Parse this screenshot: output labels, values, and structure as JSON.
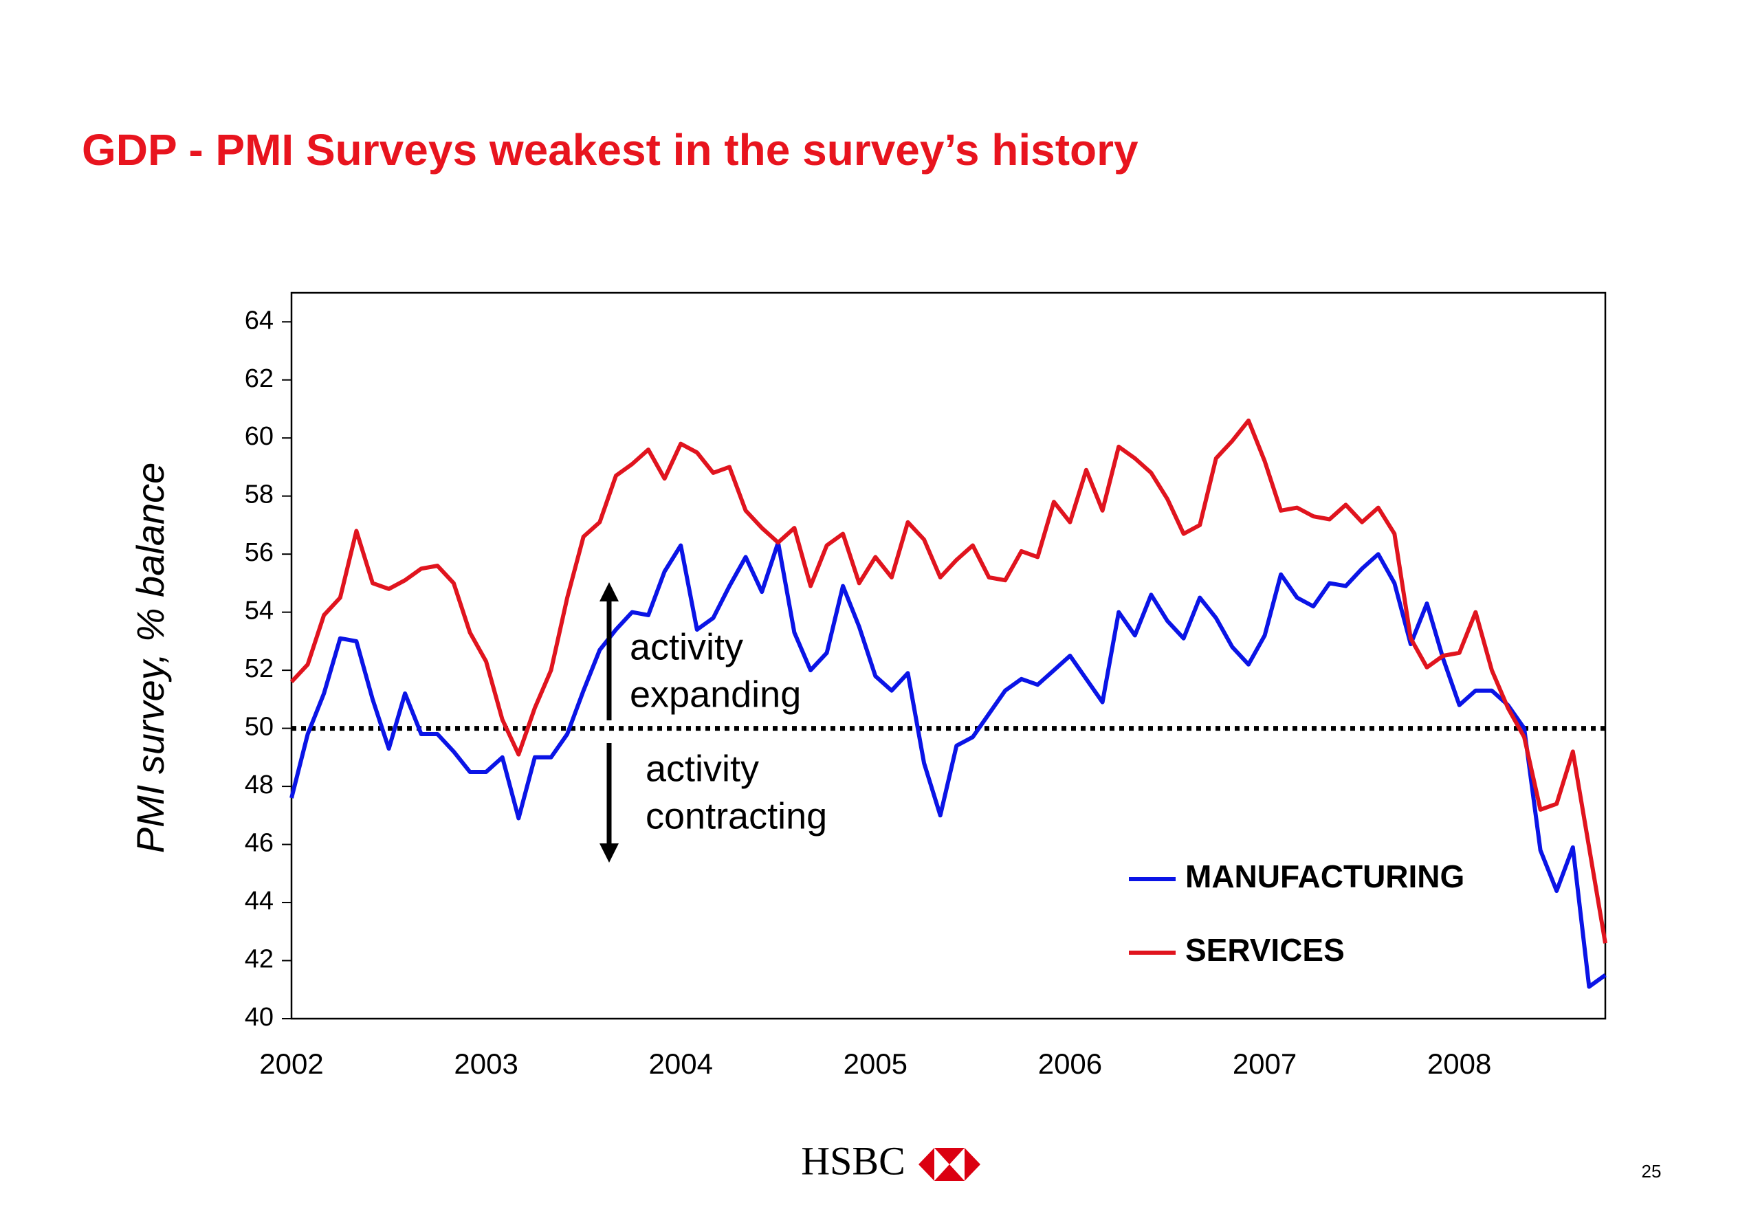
{
  "chart_data": {
    "type": "line",
    "title": "GDP - PMI Surveys weakest in the survey’s history",
    "y_label": "PMI survey, % balance",
    "categories": [
      "2002",
      null,
      null,
      null,
      null,
      null,
      null,
      null,
      null,
      null,
      null,
      null,
      "2003",
      null,
      null,
      null,
      null,
      null,
      null,
      null,
      null,
      null,
      null,
      null,
      "2004",
      null,
      null,
      null,
      null,
      null,
      null,
      null,
      null,
      null,
      null,
      null,
      "2005",
      null,
      null,
      null,
      null,
      null,
      null,
      null,
      null,
      null,
      null,
      null,
      "2006",
      null,
      null,
      null,
      null,
      null,
      null,
      null,
      null,
      null,
      null,
      null,
      "2007",
      null,
      null,
      null,
      null,
      null,
      null,
      null,
      null,
      null,
      null,
      null,
      "2008",
      null,
      null,
      null,
      null,
      null,
      null,
      null,
      null,
      null
    ],
    "series": [
      {
        "name": "MANUFACTURING",
        "color": "#0a14e6",
        "values": [
          47.6,
          49.8,
          51.2,
          53.1,
          53.0,
          51.0,
          49.3,
          51.2,
          49.8,
          49.8,
          49.2,
          48.5,
          48.5,
          49.0,
          46.9,
          49.0,
          49.0,
          49.8,
          51.3,
          52.7,
          53.4,
          54.0,
          53.9,
          55.4,
          56.3,
          53.4,
          53.8,
          54.9,
          55.9,
          54.7,
          56.4,
          53.3,
          52.0,
          52.6,
          54.9,
          53.5,
          51.8,
          51.3,
          51.9,
          48.8,
          47.0,
          49.4,
          49.7,
          50.5,
          51.3,
          51.7,
          51.5,
          52.0,
          52.5,
          51.7,
          50.9,
          54.0,
          53.2,
          54.6,
          53.7,
          53.1,
          54.5,
          53.8,
          52.8,
          52.2,
          53.2,
          55.3,
          54.5,
          54.2,
          55.0,
          54.9,
          55.5,
          56.0,
          55.0,
          52.9,
          54.3,
          52.4,
          50.8,
          51.3,
          51.3,
          50.8,
          50.0,
          45.8,
          44.4,
          45.9,
          41.1,
          41.5
        ]
      },
      {
        "name": "SERVICES",
        "color": "#e0141e",
        "values": [
          51.6,
          52.2,
          53.9,
          54.5,
          56.8,
          55.0,
          54.8,
          55.1,
          55.5,
          55.6,
          55.0,
          53.3,
          52.3,
          50.3,
          49.1,
          50.7,
          52.0,
          54.5,
          56.6,
          57.1,
          58.7,
          59.1,
          59.6,
          58.6,
          59.8,
          59.5,
          58.8,
          59.0,
          57.5,
          56.9,
          56.4,
          56.9,
          54.9,
          56.3,
          56.7,
          55.0,
          55.9,
          55.2,
          57.1,
          56.5,
          55.2,
          55.8,
          56.3,
          55.2,
          55.1,
          56.1,
          55.9,
          57.8,
          57.1,
          58.9,
          57.5,
          59.7,
          59.3,
          58.8,
          57.9,
          56.7,
          57.0,
          59.3,
          59.9,
          60.6,
          59.2,
          57.5,
          57.6,
          57.3,
          57.2,
          57.7,
          57.1,
          57.6,
          56.7,
          53.1,
          52.1,
          52.5,
          52.6,
          54.0,
          52.0,
          50.7,
          49.7,
          47.2,
          47.4,
          49.2,
          45.9,
          42.6
        ]
      }
    ],
    "ylim": [
      40,
      65
    ],
    "yticks": [
      40,
      42,
      44,
      46,
      48,
      50,
      52,
      54,
      56,
      58,
      60,
      62,
      64
    ],
    "reference_line": 50,
    "annotations": [
      {
        "lines": [
          "activity",
          "expanding"
        ],
        "direction": "up"
      },
      {
        "lines": [
          "activity",
          "contracting"
        ],
        "direction": "down"
      }
    ],
    "legend": "lower right"
  },
  "footer": {
    "brand": "HSBC",
    "page_number": "25"
  }
}
